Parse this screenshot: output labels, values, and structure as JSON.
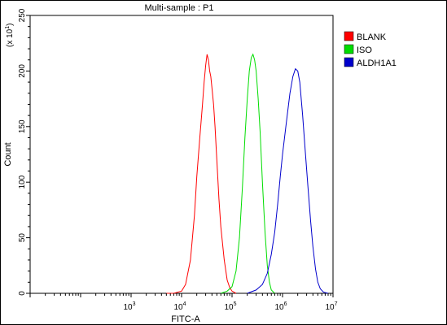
{
  "chart_data": {
    "type": "line",
    "title": "Multi-sample : P1",
    "xlabel": "FITC-A",
    "ylabel": "Count",
    "y_multiplier": "(x 10",
    "y_multiplier_exp": "1",
    "y_multiplier_close": ")",
    "xscale": "log",
    "xlim": [
      10,
      10000000
    ],
    "ylim": [
      0,
      250
    ],
    "x_ticks": [
      {
        "base": "10",
        "exp": "3",
        "value": 1000
      },
      {
        "base": "10",
        "exp": "4",
        "value": 10000
      },
      {
        "base": "10",
        "exp": "5",
        "value": 100000
      },
      {
        "base": "10",
        "exp": "6",
        "value": 1000000
      },
      {
        "base": "10",
        "exp": "7",
        "value": 10000000
      }
    ],
    "y_ticks": [
      "0",
      "50",
      "100",
      "150",
      "200",
      "250"
    ],
    "legend_position": "right",
    "series": [
      {
        "name": "BLANK",
        "color": "#ff0000",
        "x": [
          5000,
          7000,
          10000,
          12000,
          15000,
          18000,
          20000,
          23000,
          26000,
          28000,
          30000,
          32000,
          34000,
          36000,
          38000,
          40000,
          43000,
          46000,
          50000,
          55000,
          60000,
          70000,
          80000,
          90000,
          100000,
          120000
        ],
        "y": [
          0,
          0,
          2,
          8,
          30,
          70,
          105,
          140,
          170,
          190,
          205,
          215,
          210,
          200,
          195,
          185,
          170,
          150,
          120,
          85,
          60,
          30,
          12,
          5,
          2,
          0
        ]
      },
      {
        "name": "ISO",
        "color": "#00dd00",
        "x": [
          60000,
          80000,
          100000,
          120000,
          140000,
          160000,
          180000,
          200000,
          220000,
          240000,
          260000,
          280000,
          300000,
          330000,
          360000,
          400000,
          450000,
          500000,
          550000,
          600000,
          700000
        ],
        "y": [
          0,
          2,
          6,
          20,
          50,
          95,
          140,
          175,
          200,
          212,
          215,
          210,
          200,
          175,
          145,
          100,
          55,
          25,
          10,
          3,
          0
        ]
      },
      {
        "name": "ALDH1A1",
        "color": "#0000cc",
        "x": [
          200000,
          300000,
          400000,
          500000,
          600000,
          700000,
          800000,
          900000,
          1000000,
          1200000,
          1400000,
          1600000,
          1800000,
          2000000,
          2200000,
          2500000,
          2800000,
          3200000,
          3600000,
          4000000,
          4500000,
          5000000,
          5600000,
          6500000,
          8000000
        ],
        "y": [
          0,
          3,
          8,
          18,
          35,
          55,
          80,
          105,
          125,
          155,
          180,
          195,
          202,
          200,
          190,
          160,
          130,
          95,
          65,
          42,
          22,
          10,
          4,
          1,
          0
        ]
      }
    ]
  }
}
